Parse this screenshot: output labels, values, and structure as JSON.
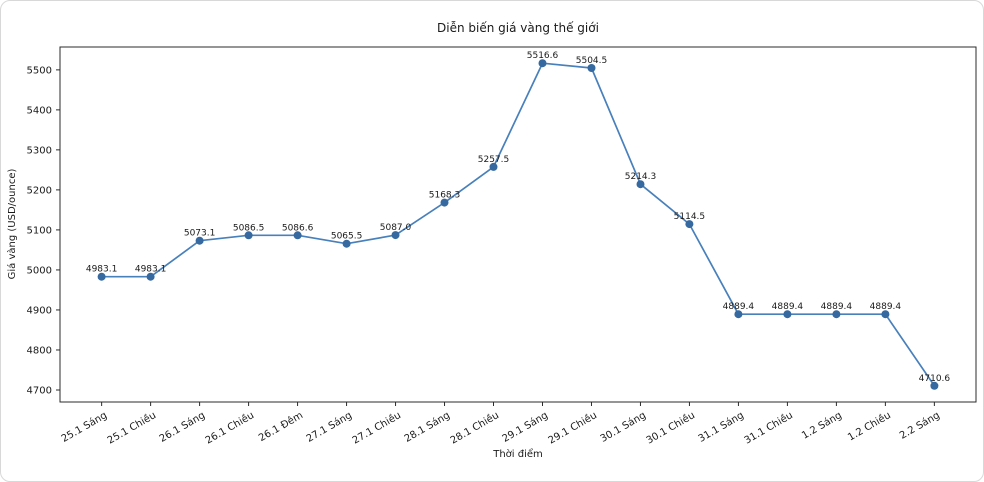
{
  "chart_data": {
    "type": "line",
    "title": "Diễn biến giá vàng thế giới",
    "xlabel": "Thời điểm",
    "ylabel": "Giá vàng (USD/ounce)",
    "categories": [
      "25.1 Sáng",
      "25.1 Chiều",
      "26.1 Sáng",
      "26.1 Chiều",
      "26.1 Đêm",
      "27.1 Sáng",
      "27.1 Chiều",
      "28.1 Sáng",
      "28.1 Chiều",
      "29.1 Sáng",
      "29.1 Chiều",
      "30.1 Sáng",
      "30.1 Chiều",
      "31.1 Sáng",
      "31.1 Chiều",
      "1.2 Sáng",
      "1.2 Chiều",
      "2.2 Sáng"
    ],
    "values": [
      4983.1,
      4983.1,
      5073.1,
      5086.5,
      5086.6,
      5065.5,
      5087.0,
      5168.3,
      5257.5,
      5516.6,
      5504.5,
      5214.3,
      5114.5,
      4889.4,
      4889.4,
      4889.4,
      4889.4,
      4710.6
    ],
    "point_labels": [
      "4983.1",
      "4983.1",
      "5073.1",
      "5086.5",
      "5086.6",
      "5065.5",
      "5087.0",
      "5168.3",
      "5257.5",
      "5516.6",
      "5504.5",
      "5214.3",
      "5114.5",
      "4889.4",
      "4889.4",
      "4889.4",
      "4889.4",
      "4710.6"
    ],
    "yticks": [
      4700,
      4800,
      4900,
      5000,
      5100,
      5200,
      5300,
      5400,
      5500
    ],
    "ylim": [
      4670,
      5557
    ],
    "x_tick_rotation_deg": 30,
    "grid": false,
    "legend": "none",
    "colors": {
      "line": "#4880bc",
      "marker": "#35699f",
      "spine": "#2b2b2b",
      "text": "#1a1a1a",
      "background": "#ffffff"
    }
  }
}
